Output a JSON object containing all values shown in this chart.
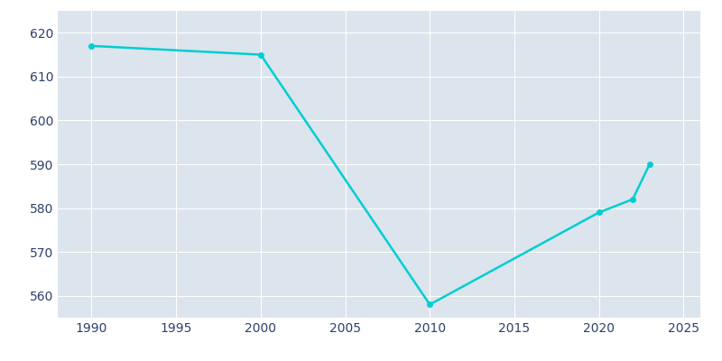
{
  "years": [
    1990,
    2000,
    2010,
    2020,
    2022,
    2023
  ],
  "population": [
    617,
    615,
    558,
    579,
    582,
    590
  ],
  "line_color": "#00CED1",
  "marker": "o",
  "marker_size": 4,
  "line_width": 1.8,
  "fig_bg_color": "#ffffff",
  "plot_bg_color": "#dce4ed",
  "grid_color": "#ffffff",
  "tick_color": "#2e3f6e",
  "xlim": [
    1988,
    2026
  ],
  "ylim": [
    555,
    625
  ],
  "yticks": [
    560,
    570,
    580,
    590,
    600,
    610,
    620
  ],
  "xticks": [
    1990,
    1995,
    2000,
    2005,
    2010,
    2015,
    2020,
    2025
  ],
  "xlabel": "",
  "ylabel": ""
}
